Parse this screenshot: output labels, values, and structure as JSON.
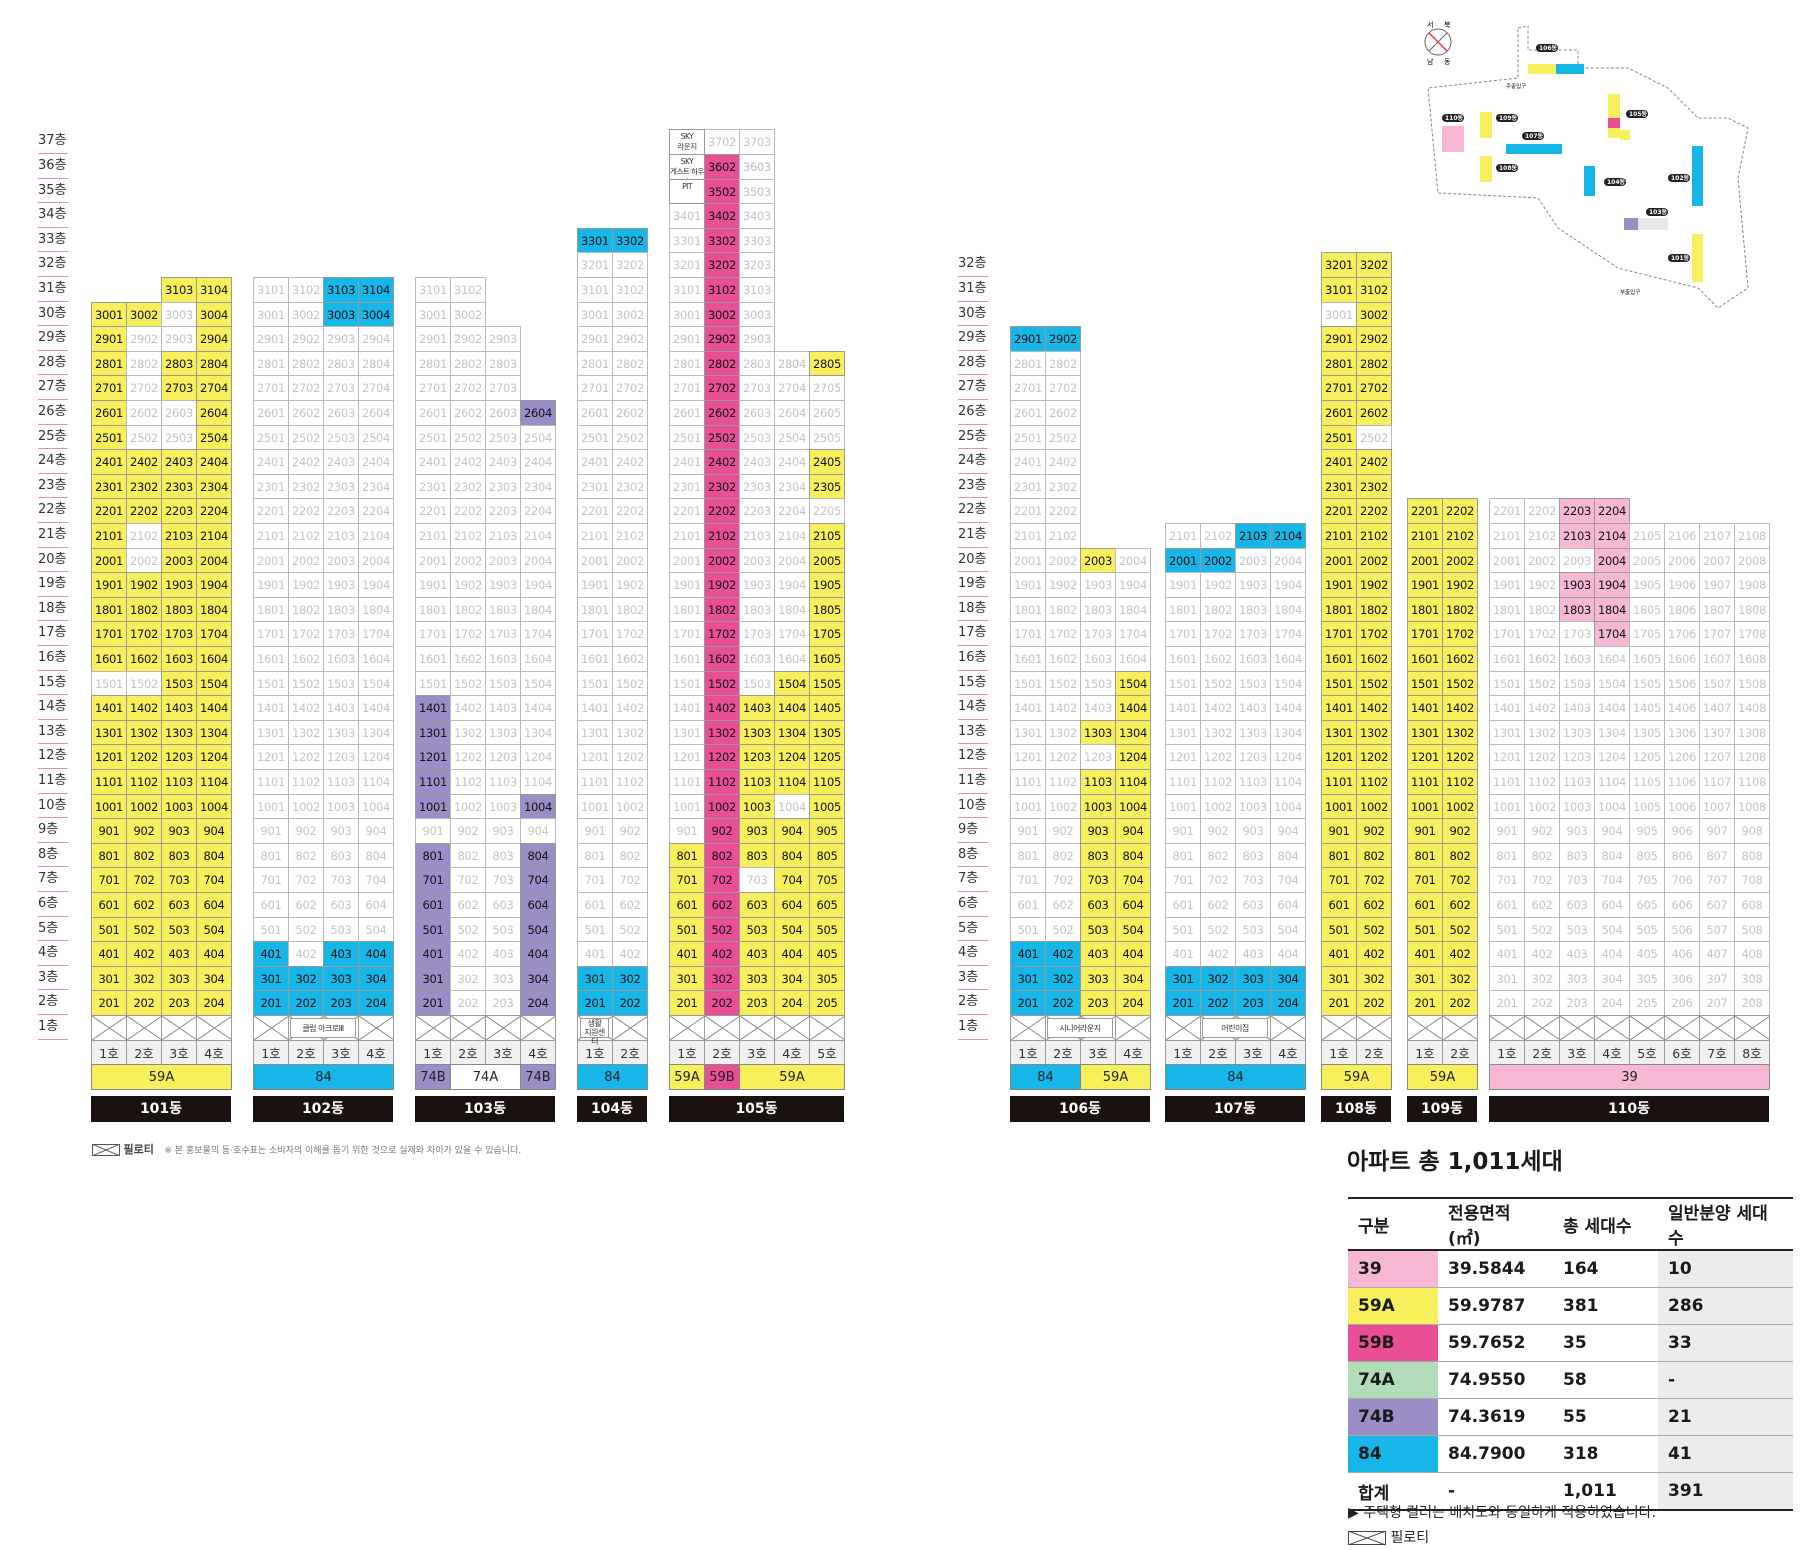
{
  "colors": {
    "39": "#f6b8d4",
    "59A": "#f8ef5c",
    "59B": "#e84f94",
    "74A": "#b2dbb8",
    "74B": "#9b8ec7",
    "84": "#16b6e9"
  },
  "floor_suffix": "층",
  "ho_suffix": "호",
  "floor_labels_left": [
    "37층",
    "36층",
    "35층",
    "34층",
    "33층",
    "32층",
    "31층",
    "30층",
    "29층",
    "28층",
    "27층",
    "26층",
    "25층",
    "24층",
    "23층",
    "22층",
    "21층",
    "20층",
    "19층",
    "18층",
    "17층",
    "16층",
    "15층",
    "14층",
    "13층",
    "12층",
    "11층",
    "10층",
    "9층",
    "8층",
    "7층",
    "6층",
    "5층",
    "4층",
    "3층",
    "2층",
    "1층"
  ],
  "floor_labels_right": [
    "32층",
    "31층",
    "30층",
    "29층",
    "28층",
    "27층",
    "26층",
    "25층",
    "24층",
    "23층",
    "22층",
    "21층",
    "20층",
    "19층",
    "18층",
    "17층",
    "16층",
    "15층",
    "14층",
    "13층",
    "12층",
    "11층",
    "10층",
    "9층",
    "8층",
    "7층",
    "6층",
    "5층",
    "4층",
    "3층",
    "2층",
    "1층"
  ],
  "buildings": [
    {
      "id": "101",
      "name": "101동",
      "top": 31,
      "cols": 4,
      "ho": [
        "1호",
        "2호",
        "3호",
        "4호"
      ],
      "types": [
        {
          "label": "59A",
          "span": 4,
          "type": "59A"
        }
      ],
      "colored": {
        "1": [
          0,
          1,
          2,
          3
        ],
        "2": [
          0,
          1,
          2,
          3
        ],
        "3": [
          0,
          1,
          2,
          3
        ],
        "4": [
          0,
          1,
          2,
          3
        ],
        "5": [
          0,
          1,
          2,
          3
        ],
        "6": [
          0,
          1,
          2,
          3
        ],
        "7": [
          0,
          1,
          2,
          3
        ],
        "8": [
          0,
          1,
          2,
          3
        ],
        "9": [
          0,
          1,
          2,
          3
        ],
        "10": [
          0,
          1,
          2,
          3
        ],
        "11": [
          0,
          1,
          2,
          3
        ],
        "12": [
          0,
          1,
          2,
          3
        ],
        "13": [
          0,
          1,
          2,
          3
        ],
        "14": [
          0,
          1,
          2,
          3
        ],
        "15": [
          2,
          3
        ],
        "16": [
          0,
          1,
          2,
          3
        ],
        "17": [
          0,
          1,
          2,
          3
        ],
        "18": [
          0,
          1,
          2,
          3
        ],
        "19": [
          0,
          1,
          2,
          3
        ],
        "20": [
          0,
          2,
          3
        ],
        "21": [
          0,
          2,
          3
        ],
        "22": [
          0,
          1,
          2,
          3
        ],
        "23": [
          0,
          1,
          2,
          3
        ],
        "24": [
          0,
          1,
          2,
          3
        ],
        "25": [
          0,
          3
        ],
        "26": [
          0,
          3
        ],
        "27": [
          0,
          2,
          3
        ],
        "28": [
          0,
          2,
          3
        ],
        "29": [
          0,
          3
        ],
        "30": [
          0,
          1,
          3
        ],
        "31": [
          2,
          3
        ]
      },
      "colorMap": {},
      "missing": {
        "31": [
          0,
          1
        ]
      }
    },
    {
      "id": "102",
      "name": "102동",
      "top": 31,
      "cols": 4,
      "ho": [
        "1호",
        "2호",
        "3호",
        "4호"
      ],
      "types": [
        {
          "label": "84",
          "span": 4,
          "type": "84"
        }
      ],
      "colored": {
        "2": [
          0,
          1,
          2,
          3
        ],
        "3": [
          0,
          1,
          2,
          3
        ],
        "4": [
          0,
          2,
          3
        ],
        "30": [
          2,
          3
        ],
        "31": [
          2,
          3
        ]
      },
      "colorMap": {},
      "span_label": "클럽 아크로Ⅲ"
    },
    {
      "id": "103",
      "name": "103동",
      "top": 31,
      "cols": 4,
      "ho": [
        "1호",
        "2호",
        "3호",
        "4호"
      ],
      "types": [
        {
          "label": "74B",
          "span": 1,
          "type": "74B"
        },
        {
          "label": "74A",
          "span": 2,
          "type": "none"
        },
        {
          "label": "74B",
          "span": 1,
          "type": "74B"
        }
      ],
      "colored": {
        "2": [
          0,
          3
        ],
        "3": [
          0,
          3
        ],
        "4": [
          0,
          3
        ],
        "5": [
          0,
          3
        ],
        "6": [
          0,
          3
        ],
        "7": [
          0,
          3
        ],
        "8": [
          0,
          3
        ],
        "10": [
          0,
          3
        ],
        "11": [
          0
        ],
        "12": [
          0
        ],
        "13": [
          0
        ],
        "14": [
          0
        ],
        "26": [
          3
        ]
      },
      "colorMap": {},
      "missing": {
        "31": [
          2,
          3
        ],
        "30": [
          2,
          3
        ],
        "29": [
          3
        ],
        "28": [
          3
        ],
        "27": [
          3
        ]
      }
    },
    {
      "id": "104",
      "name": "104동",
      "top": 33,
      "cols": 2,
      "ho": [
        "1호",
        "2호"
      ],
      "types": [
        {
          "label": "84",
          "span": 2,
          "type": "84"
        }
      ],
      "colored": {
        "2": [
          0,
          1
        ],
        "3": [
          0,
          1
        ],
        "33": [
          0,
          1
        ]
      },
      "colorMap": {},
      "span_label": "생활\n지원센터"
    },
    {
      "id": "105",
      "name": "105동",
      "top": 37,
      "cols": 5,
      "ho": [
        "1호",
        "2호",
        "3호",
        "4호",
        "5호"
      ],
      "types": [
        {
          "label": "59A",
          "span": 1,
          "type": "59A"
        },
        {
          "label": "59B",
          "span": 1,
          "type": "59B"
        },
        {
          "label": "59A",
          "span": 3,
          "type": "59A"
        }
      ],
      "colored": {},
      "colorMap": {}
    },
    {
      "id": "106",
      "name": "106동",
      "top": 29,
      "cols": 4,
      "ho": [
        "1호",
        "2호",
        "3호",
        "4호"
      ],
      "types": [
        {
          "label": "84",
          "span": 2,
          "type": "84"
        },
        {
          "label": "59A",
          "span": 2,
          "type": "59A"
        }
      ],
      "colored": {},
      "colorMap": {},
      "span_label": "시니어라운지"
    },
    {
      "id": "107",
      "name": "107동",
      "top": 21,
      "cols": 4,
      "ho": [
        "1호",
        "2호",
        "3호",
        "4호"
      ],
      "types": [
        {
          "label": "84",
          "span": 4,
          "type": "84"
        }
      ],
      "colored": {
        "2": [
          0,
          1,
          2,
          3
        ],
        "3": [
          0,
          1,
          2,
          3
        ],
        "20": [
          0,
          1
        ],
        "21": [
          2,
          3
        ]
      },
      "colorMap": {},
      "span_label": "어린이집"
    },
    {
      "id": "108",
      "name": "108동",
      "top": 32,
      "cols": 2,
      "ho": [
        "1호",
        "2호"
      ],
      "types": [
        {
          "label": "59A",
          "span": 2,
          "type": "59A"
        }
      ],
      "colored": {},
      "colorMap": {}
    },
    {
      "id": "109",
      "name": "109동",
      "top": 22,
      "cols": 2,
      "ho": [
        "1호",
        "2호"
      ],
      "types": [
        {
          "label": "59A",
          "span": 2,
          "type": "59A"
        }
      ],
      "colored": {},
      "colorMap": {}
    },
    {
      "id": "110",
      "name": "110동",
      "top": 22,
      "cols": 8,
      "ho": [
        "1호",
        "2호",
        "3호",
        "4호",
        "5호",
        "6호",
        "7호",
        "8호"
      ],
      "types": [
        {
          "label": "39",
          "span": 8,
          "type": "39"
        }
      ],
      "colored": {
        "22": [
          2,
          3
        ],
        "21": [
          2,
          3
        ],
        "20": [
          3
        ],
        "19": [
          2,
          3
        ],
        "18": [
          2,
          3
        ],
        "17": [
          3
        ]
      },
      "colorMap": {}
    }
  ],
  "special_105": {
    "37": "SKY\n라운지",
    "36": "SKY\n게스트 하우스",
    "35": "PIT"
  },
  "legend": {
    "pilotis": "필로티",
    "note": "※ 본 홍보물의 동·호수표는 소비자의 이해를 돕기 위한 것으로 실제와 차이가 있을 수 있습니다."
  },
  "summary": {
    "title": "아파트 총 1,011세대",
    "headers": [
      "구분",
      "전용면적(㎡)",
      "총 세대수",
      "일반분양 세대수"
    ],
    "rows": [
      {
        "type": "39",
        "area": "39.5844",
        "total": "164",
        "general": "10"
      },
      {
        "type": "59A",
        "area": "59.9787",
        "total": "381",
        "general": "286"
      },
      {
        "type": "59B",
        "area": "59.7652",
        "total": "35",
        "general": "33"
      },
      {
        "type": "74A",
        "area": "74.9550",
        "total": "58",
        "general": "-"
      },
      {
        "type": "74B",
        "area": "74.3619",
        "total": "55",
        "general": "21"
      },
      {
        "type": "84",
        "area": "84.7900",
        "total": "318",
        "general": "41"
      }
    ],
    "total_row": {
      "label": "합계",
      "area": "-",
      "total": "1,011",
      "general": "391"
    },
    "note": "▶ 주택형 컬러는 배치도와 동일하게 적용하였습니다.",
    "pilotis": "필로티"
  },
  "keymap": {
    "compass": [
      "서",
      "북",
      "남",
      "동"
    ],
    "labels": [
      "106동",
      "110동",
      "109동",
      "107동",
      "108동",
      "105동",
      "104동",
      "102동",
      "103동",
      "101동"
    ],
    "entrances": [
      "주출입구",
      "부출입구"
    ]
  }
}
